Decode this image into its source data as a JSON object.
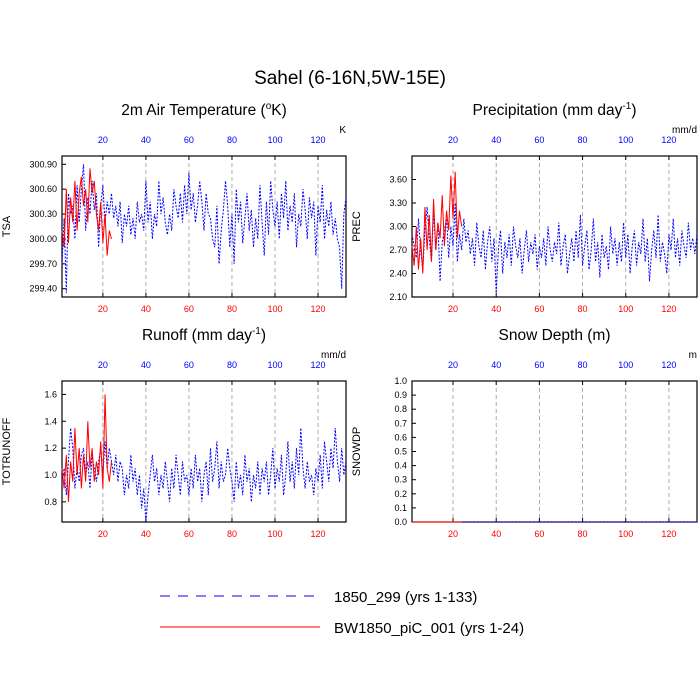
{
  "figure": {
    "title": "Sahel (6-16N,5W-15E)"
  },
  "legend": {
    "position": "bottom",
    "entries": [
      {
        "label": "1850_299 (yrs 1-133)",
        "color": "#0000ff",
        "style": "dashed"
      },
      {
        "label": "BW1850_piC_001 (yrs 1-24)",
        "color": "#ff0000",
        "style": "solid"
      }
    ]
  },
  "colors": {
    "series1": "#0000ff",
    "series2": "#ff0000",
    "grid": "#999999",
    "top_tick_labels": "#0000ff",
    "bottom_tick_labels": "#ff0000"
  },
  "chart_data": [
    {
      "type": "line",
      "panel": "top-left",
      "title": "2m Air Temperature (°K)",
      "title_parts": {
        "main": "2m Air Temperature (",
        "sup": "o",
        "tail": "K)"
      },
      "units": "K",
      "ylabel": "TSA",
      "xlim": [
        1,
        133
      ],
      "ylim": [
        299.3,
        301.0
      ],
      "yticks": [
        299.4,
        299.7,
        300.0,
        300.3,
        300.6,
        300.9
      ],
      "ytick_labels": [
        "299.40",
        "299.70",
        "300.00",
        "300.30",
        "300.60",
        "300.90"
      ],
      "xticks_bottom": [
        20,
        40,
        60,
        80,
        100,
        120
      ],
      "xtick_labels_bottom": [
        "20",
        "40",
        "60",
        "80",
        "100",
        "120"
      ],
      "xticks_top": [
        20,
        40,
        60,
        80,
        100,
        120
      ],
      "xtick_labels_top": [
        "20",
        "40",
        "60",
        "80",
        "100",
        "120"
      ],
      "grid": "vertical-dashed",
      "series": [
        {
          "name": "1850_299 (yrs 1-133)",
          "x_start": 1,
          "values": [
            299.7,
            300.25,
            299.35,
            300.55,
            300.3,
            300.4,
            300.0,
            300.65,
            300.2,
            300.6,
            300.9,
            300.1,
            300.5,
            300.3,
            300.7,
            300.35,
            300.55,
            299.9,
            300.4,
            300.65,
            300.2,
            300.45,
            300.3,
            300.55,
            300.25,
            300.4,
            300.15,
            300.45,
            299.95,
            300.3,
            300.15,
            300.4,
            300.05,
            300.25,
            300.0,
            300.45,
            300.2,
            300.3,
            300.1,
            300.7,
            300.2,
            300.45,
            300.0,
            300.3,
            300.15,
            300.7,
            300.3,
            300.5,
            300.2,
            300.05,
            300.3,
            300.1,
            300.6,
            300.4,
            300.25,
            300.55,
            300.2,
            300.65,
            300.3,
            300.8,
            300.35,
            300.55,
            300.2,
            300.4,
            300.7,
            300.45,
            300.1,
            300.55,
            300.3,
            300.25,
            300.0,
            299.9,
            300.4,
            299.7,
            300.1,
            300.35,
            300.7,
            300.4,
            299.9,
            300.3,
            299.7,
            300.6,
            300.2,
            300.45,
            299.95,
            300.25,
            300.55,
            300.1,
            300.35,
            299.9,
            300.25,
            300.0,
            300.65,
            300.2,
            299.8,
            300.45,
            300.05,
            300.7,
            300.35,
            300.15,
            300.45,
            300.0,
            300.55,
            300.25,
            300.7,
            300.1,
            300.4,
            300.2,
            300.55,
            299.9,
            300.3,
            300.15,
            300.6,
            300.35,
            300.0,
            300.5,
            300.25,
            300.45,
            299.8,
            300.4,
            300.2,
            300.65,
            300.0,
            300.35,
            300.15,
            300.45,
            300.05,
            300.25,
            300.0,
            299.9,
            299.4,
            300.3,
            300.5
          ]
        },
        {
          "name": "BW1850_piC_001 (yrs 1-24)",
          "x_start": 1,
          "values": [
            300.1,
            299.9,
            300.6,
            299.95,
            300.5,
            300.2,
            300.7,
            300.1,
            300.55,
            300.75,
            300.4,
            300.6,
            300.2,
            300.85,
            300.55,
            300.7,
            300.3,
            300.1,
            300.45,
            299.95,
            300.3,
            299.8,
            300.1,
            300.0
          ]
        }
      ]
    },
    {
      "type": "line",
      "panel": "top-right",
      "title": "Precipitation (mm day-1)",
      "title_parts": {
        "main": "Precipitation (mm day",
        "sup": "-1",
        "tail": ")"
      },
      "units": "mm/d",
      "ylabel": "PREC",
      "xlim": [
        1,
        133
      ],
      "ylim": [
        2.1,
        3.9
      ],
      "yticks": [
        2.1,
        2.4,
        2.7,
        3.0,
        3.3,
        3.6
      ],
      "ytick_labels": [
        "2.10",
        "2.40",
        "2.70",
        "3.00",
        "3.30",
        "3.60"
      ],
      "xticks_bottom": [
        20,
        40,
        60,
        80,
        100,
        120
      ],
      "xtick_labels_bottom": [
        "20",
        "40",
        "60",
        "80",
        "100",
        "120"
      ],
      "xticks_top": [
        20,
        40,
        60,
        80,
        100,
        120
      ],
      "xtick_labels_top": [
        "20",
        "40",
        "60",
        "80",
        "100",
        "120"
      ],
      "grid": "vertical-dashed",
      "series": [
        {
          "name": "1850_299 (yrs 1-133)",
          "x_start": 1,
          "values": [
            2.9,
            2.75,
            2.6,
            3.1,
            2.7,
            2.45,
            2.95,
            3.25,
            2.85,
            2.55,
            3.2,
            2.7,
            3.05,
            2.3,
            2.8,
            2.95,
            3.1,
            2.6,
            3.0,
            2.75,
            3.3,
            2.55,
            2.9,
            2.7,
            3.1,
            2.8,
            2.95,
            2.65,
            2.85,
            2.5,
            3.05,
            2.75,
            2.6,
            2.95,
            2.45,
            2.8,
            3.0,
            2.55,
            2.85,
            2.15,
            2.7,
            2.95,
            2.4,
            2.8,
            2.6,
            2.9,
            2.5,
            3.0,
            2.75,
            2.6,
            2.85,
            2.4,
            2.7,
            2.95,
            2.55,
            2.8,
            2.65,
            2.9,
            2.45,
            2.75,
            2.6,
            2.85,
            2.5,
            3.0,
            2.7,
            2.55,
            2.8,
            2.65,
            3.05,
            2.5,
            2.75,
            2.9,
            2.4,
            2.65,
            2.85,
            2.55,
            2.95,
            2.6,
            3.15,
            2.5,
            2.75,
            2.95,
            2.45,
            2.7,
            3.1,
            2.55,
            2.8,
            2.35,
            2.9,
            2.6,
            2.75,
            2.45,
            3.0,
            2.65,
            2.85,
            2.5,
            2.8,
            2.55,
            3.05,
            2.6,
            2.9,
            2.4,
            2.75,
            2.95,
            2.5,
            2.8,
            2.65,
            3.1,
            2.55,
            2.85,
            2.3,
            2.7,
            2.95,
            2.6,
            3.15,
            2.55,
            2.8,
            2.65,
            2.4,
            2.9,
            2.7,
            3.1,
            2.6,
            2.85,
            2.5,
            2.95,
            2.75,
            2.6,
            3.05,
            2.7,
            2.85,
            2.65,
            2.9
          ]
        },
        {
          "name": "BW1850_piC_001 (yrs 1-24)",
          "x_start": 1,
          "values": [
            2.75,
            2.5,
            3.0,
            2.45,
            2.85,
            2.4,
            3.25,
            2.7,
            3.15,
            2.55,
            3.35,
            2.7,
            3.05,
            2.85,
            3.4,
            2.75,
            3.2,
            2.95,
            3.65,
            3.1,
            3.7,
            2.85,
            3.2,
            3.0
          ]
        }
      ]
    },
    {
      "type": "line",
      "panel": "bottom-left",
      "title": "Runoff (mm day-1)",
      "title_parts": {
        "main": "Runoff (mm day",
        "sup": "-1",
        "tail": ")"
      },
      "units": "mm/d",
      "ylabel": "TOTRUNOFF",
      "xlim": [
        1,
        133
      ],
      "ylim": [
        0.65,
        1.7
      ],
      "yticks": [
        0.8,
        1.0,
        1.2,
        1.4,
        1.6
      ],
      "ytick_labels": [
        "0.8",
        "1.0",
        "1.2",
        "1.4",
        "1.6"
      ],
      "xticks_bottom": [
        20,
        40,
        60,
        80,
        100,
        120
      ],
      "xtick_labels_bottom": [
        "20",
        "40",
        "60",
        "80",
        "100",
        "120"
      ],
      "xticks_top": [
        20,
        40,
        60,
        80,
        100,
        120
      ],
      "xtick_labels_top": [
        "20",
        "40",
        "60",
        "80",
        "100",
        "120"
      ],
      "grid": "vertical-dashed",
      "series": [
        {
          "name": "1850_299 (yrs 1-133)",
          "x_start": 1,
          "values": [
            0.95,
            1.05,
            0.85,
            1.1,
            1.35,
            1.2,
            0.9,
            1.05,
            0.95,
            1.15,
            1.2,
            1.0,
            1.1,
            0.9,
            1.15,
            1.05,
            0.95,
            1.1,
            1.2,
            1.0,
            1.25,
            1.05,
            1.2,
            1.1,
            1.0,
            1.15,
            0.95,
            1.1,
            1.05,
            0.85,
            1.0,
            0.9,
            1.15,
            0.95,
            1.05,
            0.85,
            1.0,
            0.75,
            0.9,
            0.65,
            0.85,
            1.0,
            1.15,
            0.95,
            1.05,
            0.85,
            1.0,
            0.9,
            1.1,
            0.95,
            0.8,
            1.05,
            0.9,
            1.15,
            1.0,
            0.85,
            1.1,
            0.95,
            1.0,
            0.85,
            1.05,
            0.9,
            1.15,
            0.95,
            1.05,
            0.8,
            1.0,
            1.1,
            0.85,
            1.2,
            0.95,
            1.05,
            1.25,
            0.9,
            1.1,
            0.95,
            1.0,
            1.2,
            1.05,
            0.95,
            0.8,
            1.1,
            0.9,
            1.0,
            0.85,
            1.15,
            0.95,
            1.05,
            0.8,
            1.0,
            0.9,
            1.1,
            0.85,
            1.05,
            0.95,
            1.1,
            0.85,
            1.0,
            1.2,
            0.9,
            1.05,
            0.95,
            1.15,
            0.85,
            1.0,
            1.25,
            0.95,
            1.1,
            0.9,
            1.2,
            1.0,
            1.35,
            1.05,
            0.9,
            1.1,
            0.95,
            1.0,
            0.85,
            1.05,
            0.95,
            1.15,
            0.9,
            1.25,
            1.1,
            0.95,
            1.2,
            1.05,
            1.35,
            1.1,
            0.95,
            1.2,
            1.0,
            1.1
          ]
        },
        {
          "name": "BW1850_piC_001 (yrs 1-24)",
          "x_start": 1,
          "values": [
            1.05,
            0.9,
            1.15,
            0.8,
            1.1,
            0.95,
            1.35,
            1.0,
            1.2,
            0.9,
            1.15,
            0.95,
            1.4,
            1.05,
            1.2,
            0.95,
            1.1,
            1.0,
            1.25,
            0.9,
            1.6,
            1.05,
            0.95,
            1.1
          ]
        }
      ]
    },
    {
      "type": "line",
      "panel": "bottom-right",
      "title": "Snow Depth (m)",
      "title_parts": {
        "main": "Snow Depth (m)",
        "sup": "",
        "tail": ""
      },
      "units": "m",
      "ylabel": "SNOWDP",
      "xlim": [
        1,
        133
      ],
      "ylim": [
        0.0,
        1.0
      ],
      "yticks": [
        0.0,
        0.1,
        0.2,
        0.3,
        0.4,
        0.5,
        0.6,
        0.7,
        0.8,
        0.9,
        1.0
      ],
      "ytick_labels": [
        "0.0",
        "0.1",
        "0.2",
        "0.3",
        "0.4",
        "0.5",
        "0.6",
        "0.7",
        "0.8",
        "0.9",
        "1.0"
      ],
      "xticks_bottom": [
        20,
        40,
        60,
        80,
        100,
        120
      ],
      "xtick_labels_bottom": [
        "20",
        "40",
        "60",
        "80",
        "100",
        "120"
      ],
      "xticks_top": [
        20,
        40,
        60,
        80,
        100,
        120
      ],
      "xtick_labels_top": [
        "20",
        "40",
        "60",
        "80",
        "100",
        "120"
      ],
      "grid": "vertical-dashed",
      "series": [
        {
          "name": "1850_299 (yrs 1-133)",
          "x_start": 1,
          "values": [
            0.0,
            0.0,
            0.0,
            0.0,
            0.0,
            0.0,
            0.0,
            0.0,
            0.0,
            0.0,
            0.0,
            0.0,
            0.0,
            0.0,
            0.0,
            0.0,
            0.0,
            0.0,
            0.0,
            0.0,
            0.0,
            0.0,
            0.0,
            0.0,
            0.0,
            0.0,
            0.0,
            0.0,
            0.0,
            0.0,
            0.0,
            0.0,
            0.0,
            0.0,
            0.0,
            0.0,
            0.0,
            0.0,
            0.0,
            0.0,
            0.0,
            0.0,
            0.0,
            0.0,
            0.0,
            0.0,
            0.0,
            0.0,
            0.0,
            0.0,
            0.0,
            0.0,
            0.0,
            0.0,
            0.0,
            0.0,
            0.0,
            0.0,
            0.0,
            0.0,
            0.0,
            0.0,
            0.0,
            0.0,
            0.0,
            0.0,
            0.0,
            0.0,
            0.0,
            0.0,
            0.0,
            0.0,
            0.0,
            0.0,
            0.0,
            0.0,
            0.0,
            0.0,
            0.0,
            0.0,
            0.0,
            0.0,
            0.0,
            0.0,
            0.0,
            0.0,
            0.0,
            0.0,
            0.0,
            0.0,
            0.0,
            0.0,
            0.0,
            0.0,
            0.0,
            0.0,
            0.0,
            0.0,
            0.0,
            0.0,
            0.0,
            0.0,
            0.0,
            0.0,
            0.0,
            0.0,
            0.0,
            0.0,
            0.0,
            0.0,
            0.0,
            0.0,
            0.0,
            0.0,
            0.0,
            0.0,
            0.0,
            0.0,
            0.0,
            0.0,
            0.0,
            0.0,
            0.0,
            0.0,
            0.0,
            0.0,
            0.0,
            0.0,
            0.0,
            0.0,
            0.0,
            0.0,
            0.0
          ]
        },
        {
          "name": "BW1850_piC_001 (yrs 1-24)",
          "x_start": 1,
          "values": [
            0.0,
            0.0,
            0.0,
            0.0,
            0.0,
            0.0,
            0.0,
            0.0,
            0.0,
            0.0,
            0.0,
            0.0,
            0.0,
            0.0,
            0.0,
            0.0,
            0.0,
            0.0,
            0.0,
            0.0,
            0.0,
            0.0,
            0.0,
            0.0
          ]
        }
      ]
    }
  ]
}
